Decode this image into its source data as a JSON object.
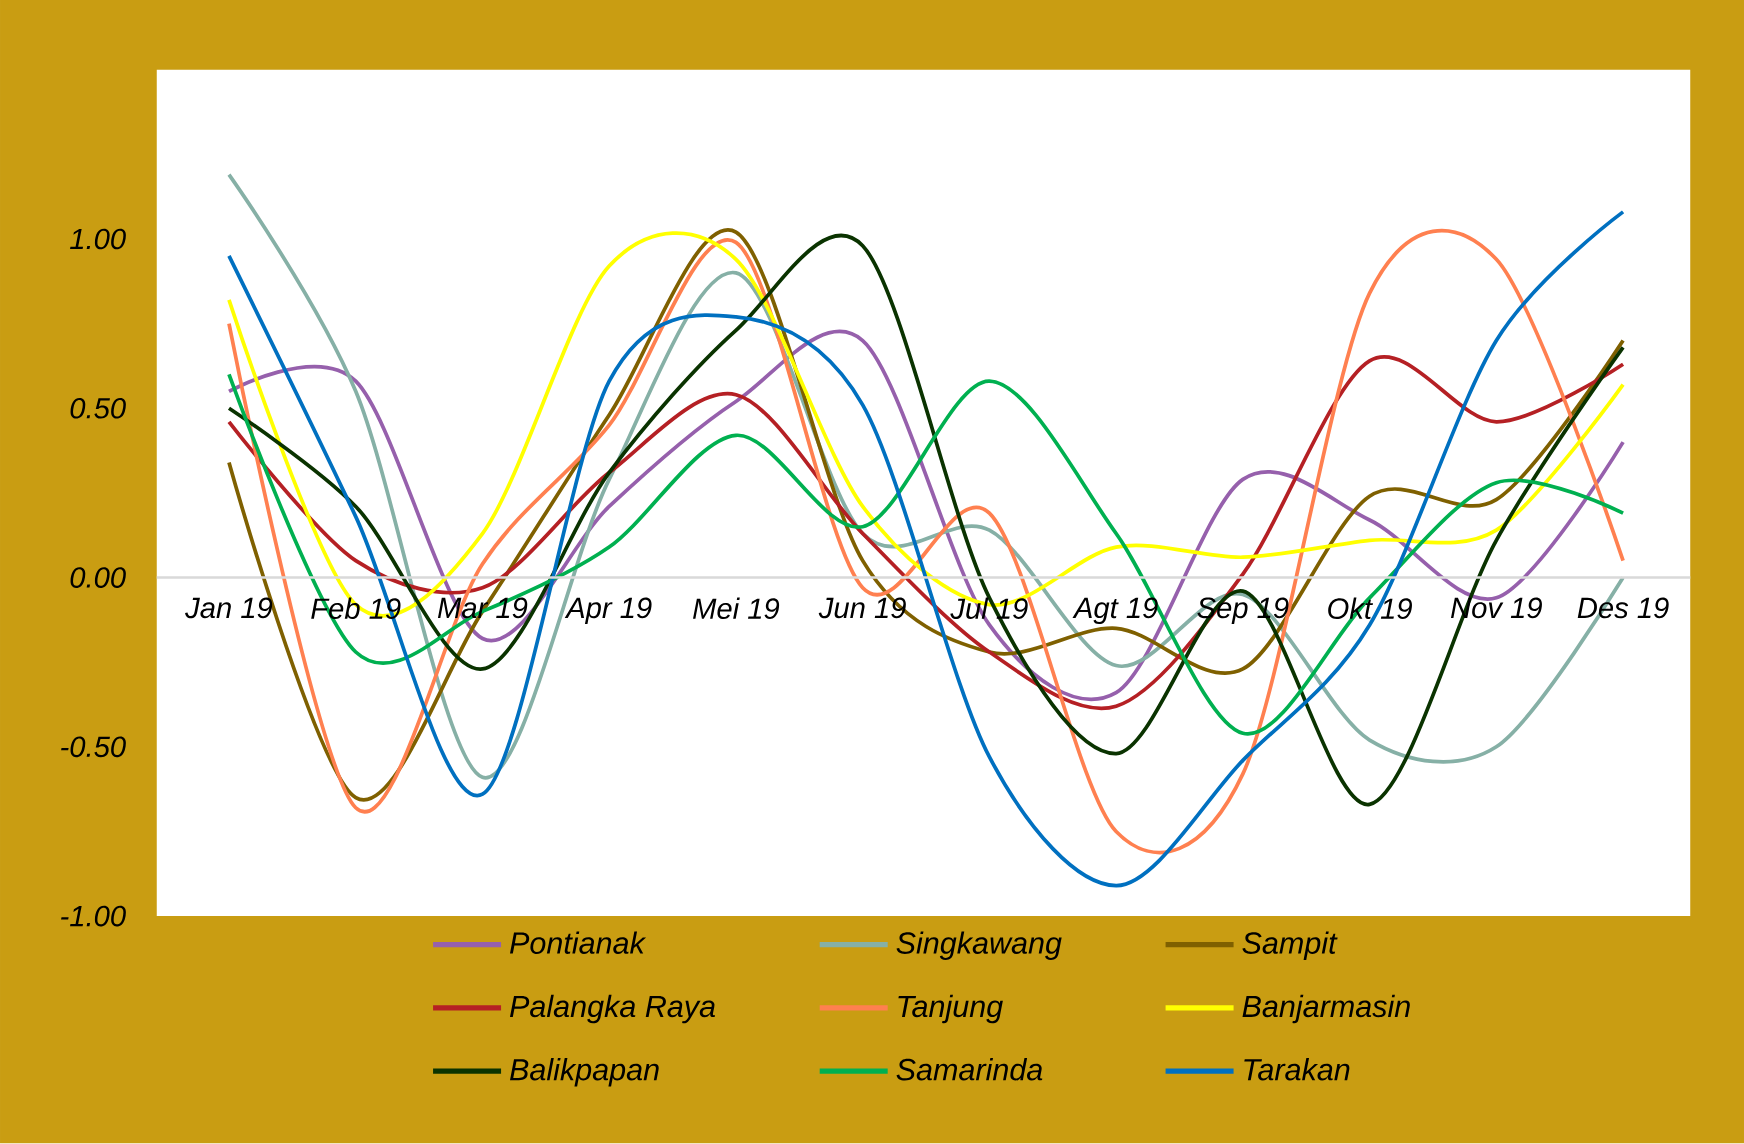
{
  "chart_data": {
    "type": "line",
    "categories": [
      "Jan 19",
      "Feb 19",
      "Mar 19",
      "Apr 19",
      "Mei 19",
      "Jun 19",
      "Jul 19",
      "Agt 19",
      "Sep 19",
      "Okt 19",
      "Nov 19",
      "Des 19"
    ],
    "series": [
      {
        "name": "Pontianak",
        "color": "#9660ac",
        "values": [
          0.55,
          0.58,
          -0.18,
          0.21,
          0.52,
          0.7,
          -0.14,
          -0.34,
          0.29,
          0.17,
          -0.06,
          0.4
        ]
      },
      {
        "name": "Singkawang",
        "color": "#86b0a6",
        "values": [
          1.19,
          0.55,
          -0.59,
          0.29,
          0.9,
          0.13,
          0.14,
          -0.26,
          -0.05,
          -0.48,
          -0.5,
          0.0
        ]
      },
      {
        "name": "Sampit",
        "color": "#7f6000",
        "values": [
          0.34,
          -0.65,
          -0.1,
          0.48,
          1.02,
          0.05,
          -0.22,
          -0.15,
          -0.27,
          0.24,
          0.23,
          0.7
        ]
      },
      {
        "name": "Palangka Raya",
        "color": "#b52024",
        "values": [
          0.46,
          0.05,
          -0.03,
          0.31,
          0.54,
          0.13,
          -0.22,
          -0.38,
          0.01,
          0.64,
          0.46,
          0.63
        ]
      },
      {
        "name": "Tanjung",
        "color": "#ff8050",
        "values": [
          0.75,
          -0.68,
          0.04,
          0.45,
          0.99,
          -0.03,
          0.19,
          -0.75,
          -0.58,
          0.84,
          0.94,
          0.05
        ]
      },
      {
        "name": "Banjarmasin",
        "color": "#ffff00",
        "values": [
          0.82,
          -0.08,
          0.13,
          0.92,
          0.94,
          0.21,
          -0.08,
          0.09,
          0.06,
          0.11,
          0.14,
          0.57
        ]
      },
      {
        "name": "Balikpapan",
        "color": "#0a3300",
        "values": [
          0.5,
          0.21,
          -0.27,
          0.31,
          0.73,
          0.98,
          -0.06,
          -0.52,
          -0.04,
          -0.67,
          0.11,
          0.68
        ]
      },
      {
        "name": "Samarinda",
        "color": "#00b050",
        "values": [
          0.6,
          -0.22,
          -0.1,
          0.09,
          0.42,
          0.15,
          0.58,
          0.13,
          -0.46,
          -0.06,
          0.28,
          0.19
        ]
      },
      {
        "name": "Tarakan",
        "color": "#0070c0",
        "values": [
          0.95,
          0.18,
          -0.64,
          0.58,
          0.77,
          0.51,
          -0.53,
          -0.91,
          -0.54,
          -0.14,
          0.7,
          1.08
        ]
      }
    ],
    "ylim": [
      -1,
      1.5
    ],
    "yticks": [
      {
        "value": -1,
        "label": "-1.00"
      },
      {
        "value": -0.5,
        "label": "-0.50"
      },
      {
        "value": 0,
        "label": "0.00"
      },
      {
        "value": 0.5,
        "label": "0.50"
      },
      {
        "value": 1,
        "label": "1.00"
      }
    ],
    "grid": false,
    "legend": "bottom",
    "marker": "none",
    "line_style": "solid"
  }
}
